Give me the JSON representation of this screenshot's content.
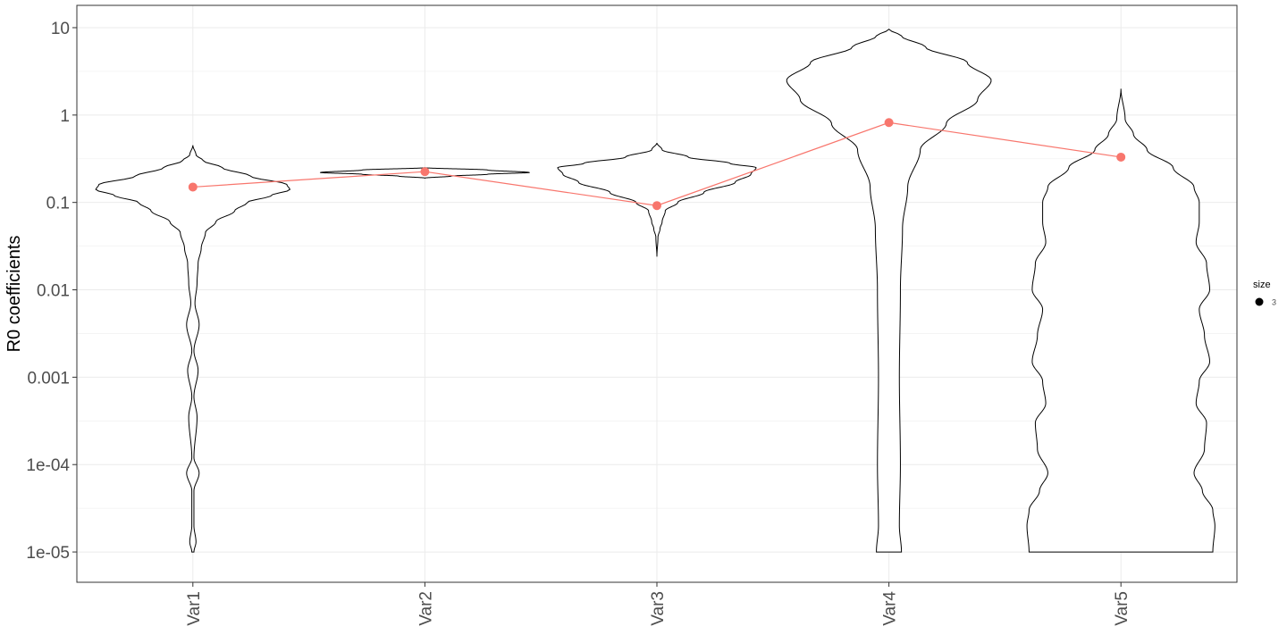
{
  "chart_data": {
    "type": "violin",
    "title": "",
    "xlabel": "",
    "ylabel": "R0 coefficients",
    "y_scale": "log10",
    "ylim": [
      4.5e-06,
      18
    ],
    "y_ticks": [
      1e-05,
      0.0001,
      0.001,
      0.01,
      0.1,
      1,
      10
    ],
    "y_tick_labels": [
      "1e-05",
      "1e-04",
      "0.001",
      "0.01",
      "0.1",
      "1",
      "10"
    ],
    "categories": [
      "Var1",
      "Var2",
      "Var3",
      "Var4",
      "Var5"
    ],
    "grid": true,
    "theme": "bw",
    "violins": [
      {
        "name": "Var1",
        "ymin": 1e-05,
        "ymax": 0.45,
        "shape": [
          [
            1e-05,
            0.01
          ],
          [
            1.3e-05,
            0.03
          ],
          [
            2e-05,
            0.01
          ],
          [
            5e-05,
            0.01
          ],
          [
            8e-05,
            0.06
          ],
          [
            0.00012,
            0.01
          ],
          [
            0.00035,
            0.04
          ],
          [
            0.0006,
            0.01
          ],
          [
            0.0012,
            0.05
          ],
          [
            0.002,
            0.01
          ],
          [
            0.004,
            0.06
          ],
          [
            0.007,
            0.02
          ],
          [
            0.012,
            0.04
          ],
          [
            0.02,
            0.05
          ],
          [
            0.03,
            0.08
          ],
          [
            0.045,
            0.12
          ],
          [
            0.06,
            0.22
          ],
          [
            0.08,
            0.4
          ],
          [
            0.1,
            0.52
          ],
          [
            0.12,
            0.75
          ],
          [
            0.14,
            0.93
          ],
          [
            0.16,
            0.9
          ],
          [
            0.2,
            0.55
          ],
          [
            0.25,
            0.28
          ],
          [
            0.3,
            0.1
          ],
          [
            0.35,
            0.03
          ],
          [
            0.45,
            0.0
          ]
        ]
      },
      {
        "name": "Var2",
        "ymin": 0.19,
        "ymax": 0.25,
        "shape": [
          [
            0.19,
            0.0
          ],
          [
            0.2,
            0.25
          ],
          [
            0.21,
            0.6
          ],
          [
            0.22,
            1.0
          ],
          [
            0.235,
            0.6
          ],
          [
            0.25,
            0.0
          ]
        ]
      },
      {
        "name": "Var3",
        "ymin": 0.024,
        "ymax": 0.48,
        "shape": [
          [
            0.024,
            0.0
          ],
          [
            0.04,
            0.01
          ],
          [
            0.05,
            0.03
          ],
          [
            0.06,
            0.05
          ],
          [
            0.08,
            0.08
          ],
          [
            0.1,
            0.2
          ],
          [
            0.13,
            0.45
          ],
          [
            0.17,
            0.75
          ],
          [
            0.21,
            0.9
          ],
          [
            0.25,
            0.95
          ],
          [
            0.28,
            0.7
          ],
          [
            0.33,
            0.3
          ],
          [
            0.4,
            0.05
          ],
          [
            0.48,
            0.0
          ]
        ]
      },
      {
        "name": "Var4",
        "ymin": 1e-05,
        "ymax": 9.6,
        "shape": [
          [
            1e-05,
            0.12
          ],
          [
            2e-05,
            0.1
          ],
          [
            0.0001,
            0.11
          ],
          [
            0.001,
            0.1
          ],
          [
            0.01,
            0.11
          ],
          [
            0.05,
            0.13
          ],
          [
            0.15,
            0.18
          ],
          [
            0.4,
            0.3
          ],
          [
            0.8,
            0.55
          ],
          [
            1.5,
            0.85
          ],
          [
            2.5,
            0.98
          ],
          [
            4,
            0.75
          ],
          [
            6,
            0.35
          ],
          [
            8,
            0.12
          ],
          [
            9.6,
            0.0
          ]
        ]
      },
      {
        "name": "Var5",
        "ymin": 1e-05,
        "ymax": 2.0,
        "shape": [
          [
            1e-05,
            0.88
          ],
          [
            2e-05,
            0.9
          ],
          [
            3e-05,
            0.88
          ],
          [
            5e-05,
            0.78
          ],
          [
            8e-05,
            0.7
          ],
          [
            0.00015,
            0.8
          ],
          [
            0.0003,
            0.82
          ],
          [
            0.0005,
            0.72
          ],
          [
            0.0009,
            0.75
          ],
          [
            0.0015,
            0.85
          ],
          [
            0.003,
            0.8
          ],
          [
            0.006,
            0.75
          ],
          [
            0.01,
            0.85
          ],
          [
            0.02,
            0.82
          ],
          [
            0.035,
            0.72
          ],
          [
            0.06,
            0.75
          ],
          [
            0.1,
            0.75
          ],
          [
            0.15,
            0.7
          ],
          [
            0.25,
            0.5
          ],
          [
            0.4,
            0.25
          ],
          [
            0.6,
            0.12
          ],
          [
            0.9,
            0.04
          ],
          [
            2.0,
            0.0
          ]
        ]
      }
    ],
    "medians": {
      "color": "#F8766D",
      "values": [
        0.15,
        0.225,
        0.092,
        0.82,
        0.33
      ]
    },
    "legend": {
      "position": "right",
      "title": "size",
      "items": [
        {
          "label": "3",
          "color": "#000000"
        }
      ]
    }
  }
}
